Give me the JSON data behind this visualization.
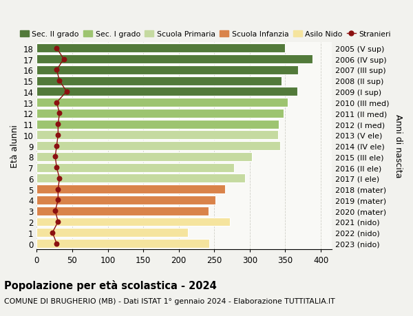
{
  "ages": [
    0,
    1,
    2,
    3,
    4,
    5,
    6,
    7,
    8,
    9,
    10,
    11,
    12,
    13,
    14,
    15,
    16,
    17,
    18
  ],
  "right_labels": [
    "2023 (nido)",
    "2022 (nido)",
    "2021 (nido)",
    "2020 (mater)",
    "2019 (mater)",
    "2018 (mater)",
    "2017 (I ele)",
    "2016 (II ele)",
    "2015 (III ele)",
    "2014 (IV ele)",
    "2013 (V ele)",
    "2012 (I med)",
    "2011 (II med)",
    "2010 (III med)",
    "2009 (I sup)",
    "2008 (II sup)",
    "2007 (III sup)",
    "2006 (IV sup)",
    "2005 (V sup)"
  ],
  "bar_values": [
    243,
    213,
    272,
    242,
    252,
    265,
    293,
    278,
    303,
    343,
    340,
    341,
    348,
    353,
    367,
    345,
    368,
    388,
    350
  ],
  "bar_colors": [
    "#f5e49e",
    "#f5e49e",
    "#f5e49e",
    "#d9834a",
    "#d9834a",
    "#d9834a",
    "#c5daa0",
    "#c5daa0",
    "#c5daa0",
    "#c5daa0",
    "#c5daa0",
    "#9dc470",
    "#9dc470",
    "#9dc470",
    "#527a3a",
    "#527a3a",
    "#527a3a",
    "#527a3a",
    "#527a3a"
  ],
  "stranieri_values": [
    28,
    22,
    30,
    26,
    30,
    30,
    32,
    28,
    26,
    28,
    30,
    30,
    32,
    28,
    42,
    32,
    28,
    38,
    28
  ],
  "legend_labels": [
    "Sec. II grado",
    "Sec. I grado",
    "Scuola Primaria",
    "Scuola Infanzia",
    "Asilo Nido",
    "Stranieri"
  ],
  "legend_colors": [
    "#527a3a",
    "#9dc470",
    "#c5daa0",
    "#d9834a",
    "#f5e49e",
    "#8b1010"
  ],
  "title": "Popolazione per età scolastica - 2024",
  "subtitle": "COMUNE DI BRUGHERIO (MB) - Dati ISTAT 1° gennaio 2024 - Elaborazione TUTTITALIA.IT",
  "ylabel_left": "Età alunni",
  "ylabel_right": "Anni di nascita",
  "xlim": [
    0,
    415
  ],
  "xticks": [
    0,
    50,
    100,
    150,
    200,
    250,
    300,
    350,
    400
  ],
  "bg_color": "#f2f2ee",
  "bar_bg_color": "#f9f9f6",
  "grid_color": "#d0d0c8",
  "bar_height": 0.82
}
